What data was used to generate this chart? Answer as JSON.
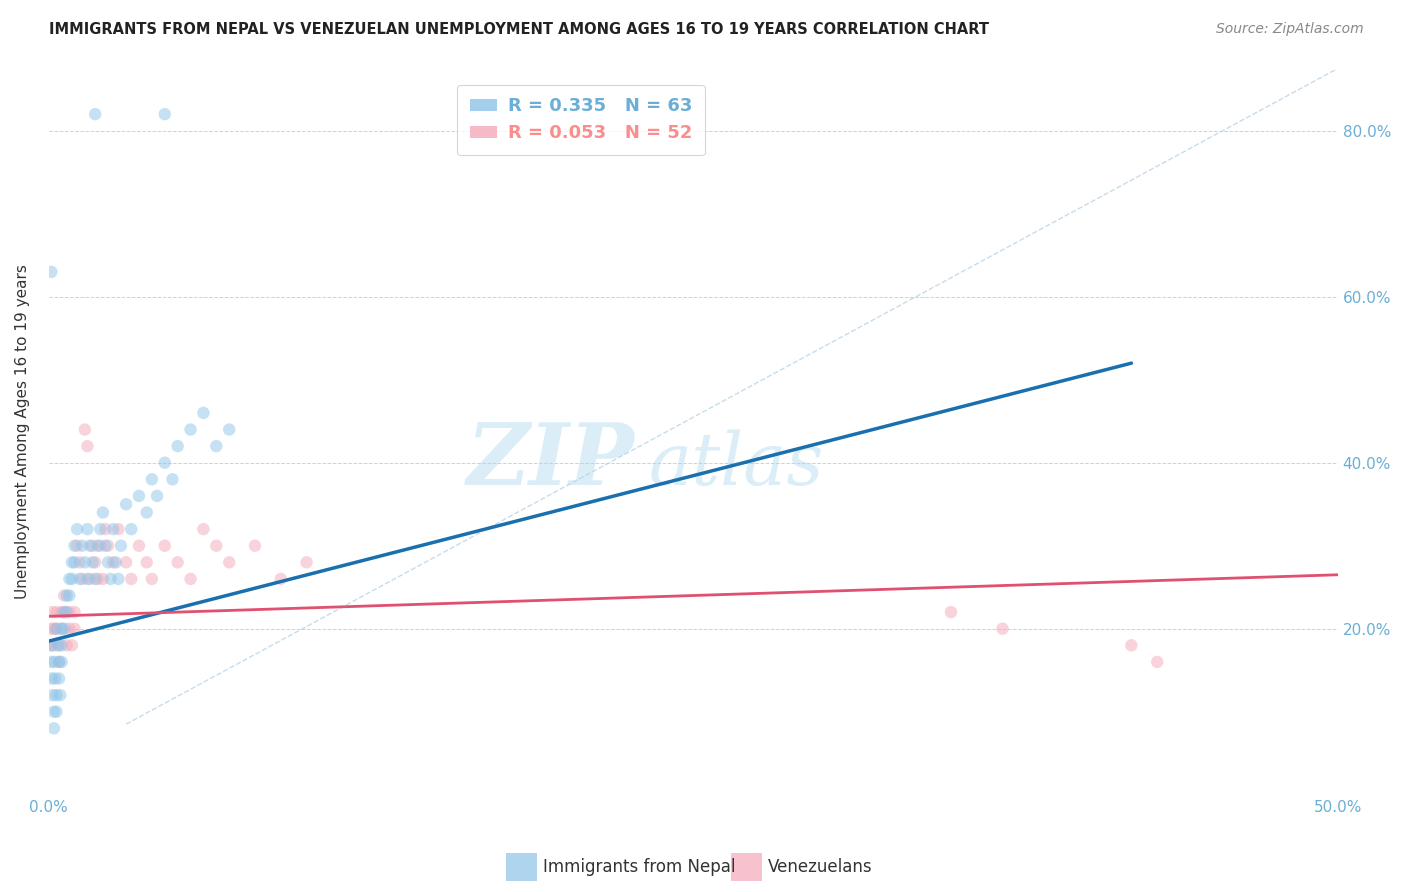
{
  "title": "IMMIGRANTS FROM NEPAL VS VENEZUELAN UNEMPLOYMENT AMONG AGES 16 TO 19 YEARS CORRELATION CHART",
  "source": "Source: ZipAtlas.com",
  "ylabel": "Unemployment Among Ages 16 to 19 years",
  "xlim": [
    0.0,
    0.5
  ],
  "ylim": [
    0.0,
    0.875
  ],
  "xtick_vals": [
    0.0,
    0.5
  ],
  "xtick_labels": [
    "0.0%",
    "50.0%"
  ],
  "ytick_vals": [
    0.0,
    0.2,
    0.4,
    0.6,
    0.8
  ],
  "ytick_labels_left": [
    "",
    "",
    "",
    "",
    ""
  ],
  "ytick_labels_right": [
    "",
    "20.0%",
    "40.0%",
    "60.0%",
    "80.0%"
  ],
  "legend_entries": [
    {
      "label": "R = 0.335   N = 63",
      "color": "#6baed6"
    },
    {
      "label": "R = 0.053   N = 52",
      "color": "#fc8d8d"
    }
  ],
  "blue_scatter_x": [
    0.0008,
    0.001,
    0.0012,
    0.0015,
    0.002,
    0.002,
    0.0022,
    0.0025,
    0.003,
    0.003,
    0.003,
    0.0035,
    0.004,
    0.004,
    0.0045,
    0.005,
    0.005,
    0.005,
    0.006,
    0.006,
    0.007,
    0.007,
    0.008,
    0.008,
    0.009,
    0.009,
    0.01,
    0.01,
    0.011,
    0.012,
    0.013,
    0.014,
    0.015,
    0.015,
    0.016,
    0.017,
    0.018,
    0.019,
    0.02,
    0.021,
    0.022,
    0.023,
    0.024,
    0.025,
    0.026,
    0.027,
    0.028,
    0.03,
    0.032,
    0.035,
    0.038,
    0.04,
    0.042,
    0.045,
    0.048,
    0.05,
    0.055,
    0.06,
    0.065,
    0.07,
    0.018,
    0.045,
    0.001
  ],
  "blue_scatter_y": [
    0.18,
    0.16,
    0.14,
    0.12,
    0.1,
    0.08,
    0.16,
    0.14,
    0.12,
    0.1,
    0.2,
    0.18,
    0.16,
    0.14,
    0.12,
    0.2,
    0.18,
    0.16,
    0.22,
    0.2,
    0.24,
    0.22,
    0.26,
    0.24,
    0.28,
    0.26,
    0.3,
    0.28,
    0.32,
    0.26,
    0.3,
    0.28,
    0.26,
    0.32,
    0.3,
    0.28,
    0.26,
    0.3,
    0.32,
    0.34,
    0.3,
    0.28,
    0.26,
    0.32,
    0.28,
    0.26,
    0.3,
    0.35,
    0.32,
    0.36,
    0.34,
    0.38,
    0.36,
    0.4,
    0.38,
    0.42,
    0.44,
    0.46,
    0.42,
    0.44,
    0.82,
    0.82,
    0.63
  ],
  "pink_scatter_x": [
    0.001,
    0.001,
    0.0015,
    0.002,
    0.002,
    0.003,
    0.003,
    0.004,
    0.004,
    0.005,
    0.005,
    0.006,
    0.006,
    0.007,
    0.008,
    0.008,
    0.009,
    0.01,
    0.01,
    0.011,
    0.012,
    0.013,
    0.014,
    0.015,
    0.016,
    0.017,
    0.018,
    0.019,
    0.02,
    0.021,
    0.022,
    0.023,
    0.025,
    0.027,
    0.03,
    0.032,
    0.035,
    0.038,
    0.04,
    0.045,
    0.05,
    0.055,
    0.06,
    0.065,
    0.07,
    0.08,
    0.09,
    0.1,
    0.35,
    0.37,
    0.42,
    0.43
  ],
  "pink_scatter_y": [
    0.2,
    0.18,
    0.22,
    0.2,
    0.18,
    0.22,
    0.2,
    0.18,
    0.16,
    0.22,
    0.2,
    0.24,
    0.22,
    0.18,
    0.22,
    0.2,
    0.18,
    0.22,
    0.2,
    0.3,
    0.28,
    0.26,
    0.44,
    0.42,
    0.26,
    0.3,
    0.28,
    0.26,
    0.3,
    0.26,
    0.32,
    0.3,
    0.28,
    0.32,
    0.28,
    0.26,
    0.3,
    0.28,
    0.26,
    0.3,
    0.28,
    0.26,
    0.32,
    0.3,
    0.28,
    0.3,
    0.26,
    0.28,
    0.22,
    0.2,
    0.18,
    0.16
  ],
  "blue_line_x": [
    0.0,
    0.42
  ],
  "blue_line_y": [
    0.185,
    0.52
  ],
  "pink_line_x": [
    0.0,
    0.5
  ],
  "pink_line_y": [
    0.215,
    0.265
  ],
  "diag_line_x": [
    0.03,
    0.5
  ],
  "diag_line_y": [
    0.085,
    0.875
  ],
  "background_color": "#ffffff",
  "scatter_alpha": 0.5,
  "scatter_size": 80,
  "blue_color": "#8ec4e8",
  "pink_color": "#f4a8b8",
  "blue_line_color": "#1a6faf",
  "pink_line_color": "#e05070",
  "grid_color": "#cccccc",
  "title_color": "#222222",
  "right_axis_color": "#6baed6",
  "watermark_color": "#dbeef8",
  "watermark_fontsize_zip": 62,
  "watermark_fontsize_atlas": 52
}
